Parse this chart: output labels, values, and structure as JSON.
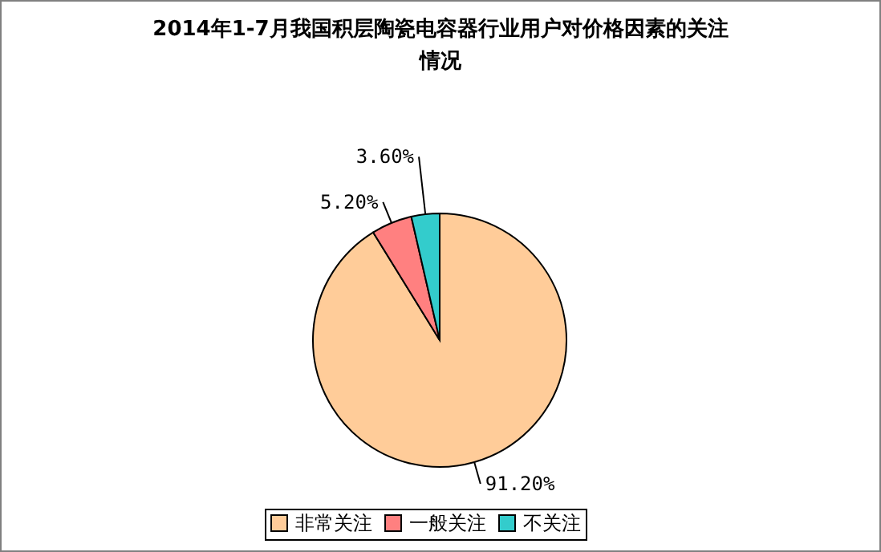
{
  "chart_data": {
    "type": "pie",
    "title": "2014年1-7月我国积层陶瓷电容器行业用户对价格因素的关注情况",
    "categories": [
      "非常关注",
      "一般关注",
      "不关注"
    ],
    "values": [
      91.2,
      5.2,
      3.6
    ],
    "colors": [
      "#ffcc99",
      "#ff8080",
      "#33cccc"
    ],
    "value_labels": [
      "91.20%",
      "5.20%",
      "3.60%"
    ],
    "legend": "bottom"
  }
}
